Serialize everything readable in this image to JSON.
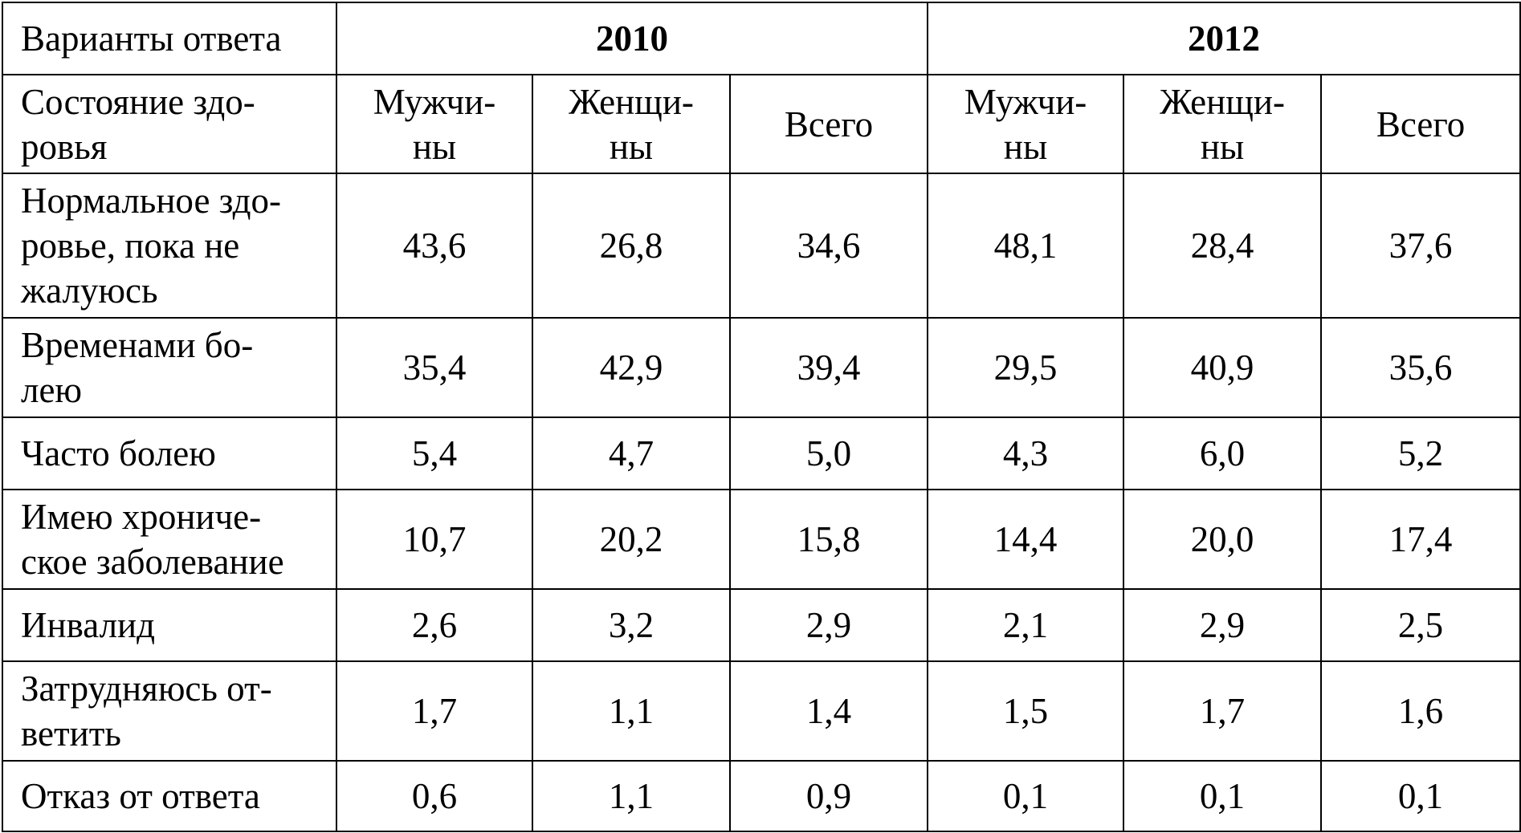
{
  "table": {
    "corner_label": "Варианты ответа",
    "subheader_label": "Состояние здо-\nровья",
    "years": [
      "2010",
      "2012"
    ],
    "subcolumns": [
      "Мужчи-\nны",
      "Женщи-\nны",
      "Всего"
    ],
    "rows": [
      {
        "label": "Нормальное здо-\nровье, пока не\nжалуюсь",
        "values": [
          "43,6",
          "26,8",
          "34,6",
          "48,1",
          "28,4",
          "37,6"
        ]
      },
      {
        "label": "Временами бо-\nлею",
        "values": [
          "35,4",
          "42,9",
          "39,4",
          "29,5",
          "40,9",
          "35,6"
        ]
      },
      {
        "label": "Часто болею",
        "values": [
          "5,4",
          "4,7",
          "5,0",
          "4,3",
          "6,0",
          "5,2"
        ]
      },
      {
        "label": "Имею хрониче-\nское заболевание",
        "values": [
          "10,7",
          "20,2",
          "15,8",
          "14,4",
          "20,0",
          "17,4"
        ]
      },
      {
        "label": "Инвалид",
        "values": [
          "2,6",
          "3,2",
          "2,9",
          "2,1",
          "2,9",
          "2,5"
        ]
      },
      {
        "label": "Затрудняюсь от-\nветить",
        "values": [
          "1,7",
          "1,1",
          "1,4",
          "1,5",
          "1,7",
          "1,6"
        ]
      },
      {
        "label": "Отказ от ответа",
        "values": [
          "0,6",
          "1,1",
          "0,9",
          "0,1",
          "0,1",
          "0,1"
        ]
      }
    ]
  }
}
